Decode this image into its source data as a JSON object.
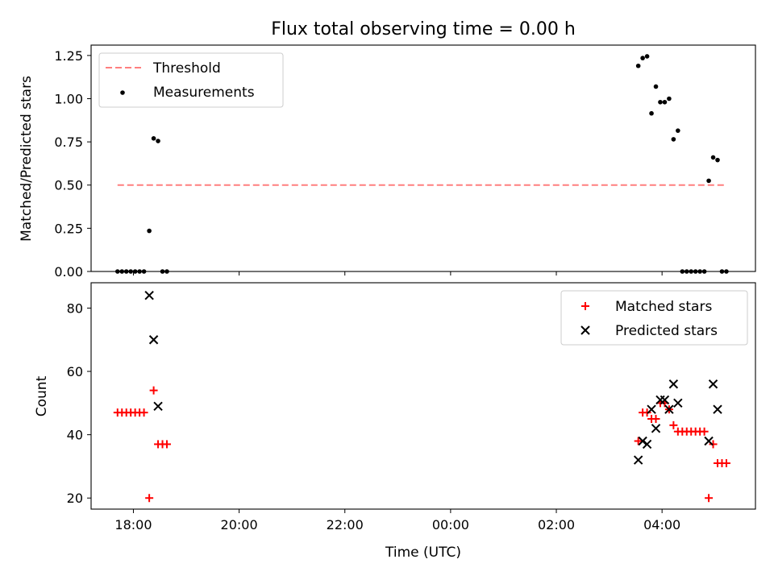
{
  "chart_data": [
    {
      "type": "scatter",
      "title": "Flux total observing time = 0.00 h",
      "xlabel": "",
      "ylabel": "Matched/Predicted stars",
      "ylim": [
        0,
        1.31
      ],
      "y_ticks": [
        "0.00",
        "0.25",
        "0.50",
        "0.75",
        "1.00",
        "1.25"
      ],
      "y_tick_values": [
        0,
        0.25,
        0.5,
        0.75,
        1.0,
        1.25
      ],
      "legend_position": "top-left",
      "series": [
        {
          "name": "Threshold",
          "style": "dashed-line",
          "color": "#ff7f7f",
          "points": [
            [
              "17:42",
              0.5
            ],
            [
              "05:12",
              0.5
            ]
          ]
        },
        {
          "name": "Measurements",
          "style": "dot",
          "color": "#000000",
          "points": [
            [
              "17:42",
              0.0
            ],
            [
              "17:47",
              0.0
            ],
            [
              "17:52",
              0.0
            ],
            [
              "17:57",
              0.0
            ],
            [
              "18:02",
              0.0
            ],
            [
              "18:07",
              0.0
            ],
            [
              "18:12",
              0.0
            ],
            [
              "18:18",
              0.235
            ],
            [
              "18:23",
              0.77
            ],
            [
              "18:28",
              0.755
            ],
            [
              "18:33",
              0.0
            ],
            [
              "18:38",
              0.0
            ],
            [
              "03:33",
              1.19
            ],
            [
              "03:38",
              1.235
            ],
            [
              "03:43",
              1.245
            ],
            [
              "03:48",
              0.915
            ],
            [
              "03:53",
              1.07
            ],
            [
              "03:58",
              0.98
            ],
            [
              "04:03",
              0.98
            ],
            [
              "04:08",
              1.0
            ],
            [
              "04:13",
              0.765
            ],
            [
              "04:18",
              0.815
            ],
            [
              "04:23",
              0.0
            ],
            [
              "04:28",
              0.0
            ],
            [
              "04:33",
              0.0
            ],
            [
              "04:38",
              0.0
            ],
            [
              "04:43",
              0.0
            ],
            [
              "04:48",
              0.0
            ],
            [
              "04:53",
              0.525
            ],
            [
              "04:58",
              0.66
            ],
            [
              "05:03",
              0.645
            ],
            [
              "05:08",
              0.0
            ],
            [
              "05:13",
              0.0
            ]
          ]
        }
      ]
    },
    {
      "type": "scatter",
      "title": "",
      "xlabel": "Time (UTC)",
      "ylabel": "Count",
      "ylim": [
        16.5,
        88
      ],
      "y_ticks": [
        "20",
        "40",
        "60",
        "80"
      ],
      "y_tick_values": [
        20,
        40,
        60,
        80
      ],
      "x_ticks": [
        "18:00",
        "20:00",
        "22:00",
        "00:00",
        "02:00",
        "04:00"
      ],
      "legend_position": "top-right",
      "series": [
        {
          "name": "Matched stars",
          "marker": "plus",
          "color": "#ff0000",
          "points": [
            [
              "17:42",
              47
            ],
            [
              "17:47",
              47
            ],
            [
              "17:52",
              47
            ],
            [
              "17:57",
              47
            ],
            [
              "18:02",
              47
            ],
            [
              "18:07",
              47
            ],
            [
              "18:12",
              47
            ],
            [
              "18:18",
              20
            ],
            [
              "18:23",
              54
            ],
            [
              "18:28",
              37
            ],
            [
              "18:33",
              37
            ],
            [
              "18:38",
              37
            ],
            [
              "03:33",
              38
            ],
            [
              "03:38",
              47
            ],
            [
              "03:43",
              47
            ],
            [
              "03:48",
              45
            ],
            [
              "03:53",
              45
            ],
            [
              "03:58",
              50
            ],
            [
              "04:03",
              50
            ],
            [
              "04:08",
              48
            ],
            [
              "04:13",
              43
            ],
            [
              "04:18",
              41
            ],
            [
              "04:23",
              41
            ],
            [
              "04:28",
              41
            ],
            [
              "04:33",
              41
            ],
            [
              "04:38",
              41
            ],
            [
              "04:43",
              41
            ],
            [
              "04:48",
              41
            ],
            [
              "04:53",
              20
            ],
            [
              "04:58",
              37
            ],
            [
              "05:03",
              31
            ],
            [
              "05:08",
              31
            ],
            [
              "05:13",
              31
            ]
          ]
        },
        {
          "name": "Predicted stars",
          "marker": "x",
          "color": "#000000",
          "points": [
            [
              "18:18",
              84
            ],
            [
              "18:23",
              70
            ],
            [
              "18:28",
              49
            ],
            [
              "03:33",
              32
            ],
            [
              "03:38",
              38
            ],
            [
              "03:43",
              37
            ],
            [
              "03:48",
              48
            ],
            [
              "03:53",
              42
            ],
            [
              "03:58",
              51
            ],
            [
              "04:03",
              51
            ],
            [
              "04:08",
              48
            ],
            [
              "04:13",
              56
            ],
            [
              "04:18",
              50
            ],
            [
              "04:53",
              38
            ],
            [
              "04:58",
              56
            ],
            [
              "05:03",
              48
            ]
          ]
        }
      ]
    }
  ]
}
